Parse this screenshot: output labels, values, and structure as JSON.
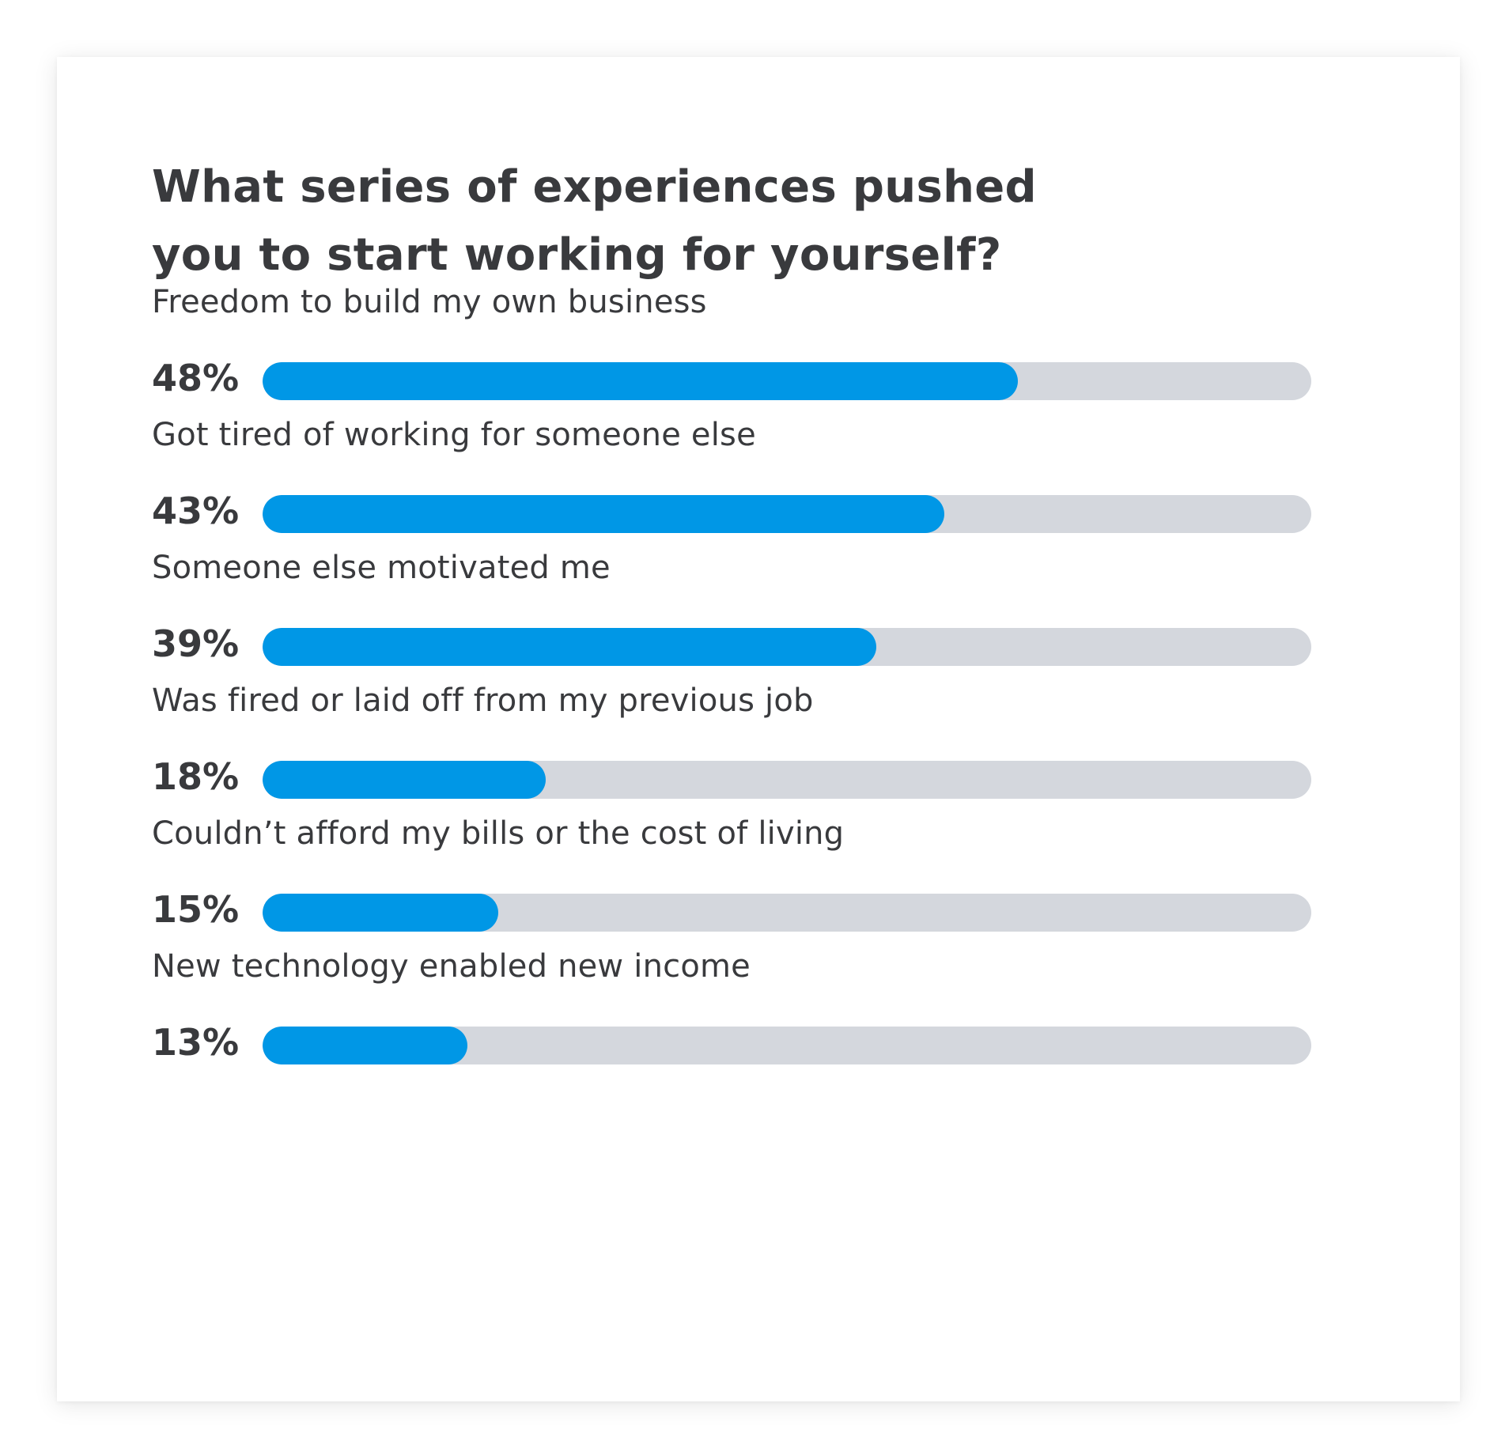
{
  "title_lines": [
    "What series of experiences pushed",
    "you to start working for yourself?"
  ],
  "colors": {
    "bar_fill": "#0097e6",
    "bar_track": "#d4d7dd",
    "text": "#393a3d"
  },
  "chart_data": {
    "type": "bar",
    "orientation": "horizontal",
    "title": "What series of experiences pushed you to start working for yourself?",
    "categories": [
      "Freedom to build my own business",
      "Got tired of working for someone else",
      "Someone else motivated me",
      "Was fired or laid off from my previous job",
      "Couldn’t afford my bills or the cost of living",
      "New technology enabled new income"
    ],
    "values": [
      48,
      43,
      39,
      18,
      15,
      13
    ],
    "value_labels": [
      "48%",
      "43%",
      "39%",
      "18%",
      "15%",
      "13%"
    ],
    "unit": "%",
    "bar_fill_fraction": [
      0.72,
      0.65,
      0.585,
      0.27,
      0.225,
      0.195
    ],
    "grid": false,
    "legend": "none"
  }
}
